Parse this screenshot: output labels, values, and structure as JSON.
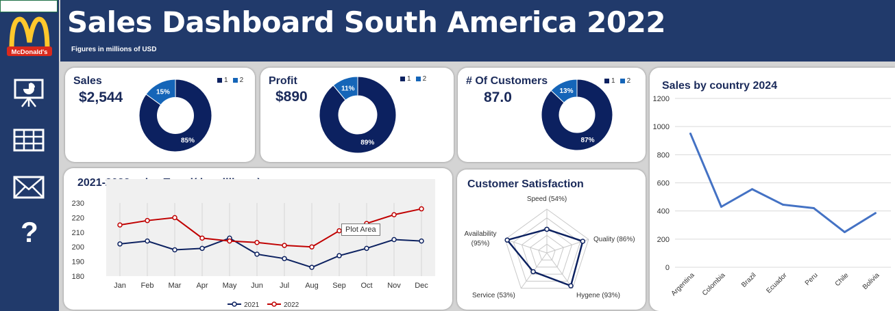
{
  "header": {
    "title": "Sales Dashboard South America 2022",
    "subtitle": "Figures in millions of USD"
  },
  "logo": {
    "text": "McDonald's"
  },
  "nav": [
    {
      "name": "presentation-icon"
    },
    {
      "name": "table-icon"
    },
    {
      "name": "mail-icon"
    },
    {
      "name": "help-icon",
      "glyph": "?"
    }
  ],
  "kpis": [
    {
      "label": "Sales",
      "value": "$2,544",
      "slices": [
        85,
        15
      ],
      "slice_labels": [
        "85%",
        "15%"
      ],
      "legend": [
        "1",
        "2"
      ]
    },
    {
      "label": "Profit",
      "value": "$890",
      "slices": [
        89,
        11
      ],
      "slice_labels": [
        "89%",
        "11%"
      ],
      "legend": [
        "1",
        "2"
      ]
    },
    {
      "label": "# Of Customers",
      "value": "87.0",
      "slices": [
        87,
        13
      ],
      "slice_labels": [
        "87%",
        "13%"
      ],
      "legend": [
        "1",
        "2"
      ]
    }
  ],
  "colors": {
    "navy": "#0c2160",
    "blue": "#1565b8",
    "red": "#c00000",
    "line": "#4472c4",
    "header": "#213a6b"
  },
  "tooltip": "Plot Area",
  "chart_data": [
    {
      "type": "line",
      "title": "2021-2022 sales Trend( in millions )",
      "categories": [
        "Jan",
        "Feb",
        "Mar",
        "Apr",
        "May",
        "Jun",
        "Jul",
        "Aug",
        "Sep",
        "Oct",
        "Nov",
        "Dec"
      ],
      "series": [
        {
          "name": "2021",
          "values": [
            202,
            204,
            198,
            199,
            206,
            195,
            192,
            186,
            194,
            199,
            205,
            204
          ]
        },
        {
          "name": "2022",
          "values": [
            215,
            218,
            220,
            206,
            204,
            203,
            201,
            200,
            211,
            216,
            222,
            226
          ]
        }
      ],
      "ylim": [
        180,
        230
      ],
      "yticks": [
        "180",
        "190",
        "200",
        "210",
        "220",
        "230"
      ],
      "legend": "bottom",
      "grid": "vertical"
    },
    {
      "type": "radar",
      "title": "Customer Satisfaction",
      "axes": [
        "Speed (54%)",
        "Quality (86%)",
        "Hygene (93%)",
        "Service (53%)",
        "Availability (95%)"
      ],
      "values": [
        54,
        86,
        93,
        53,
        95
      ]
    },
    {
      "type": "line",
      "title": "Sales by country 2024",
      "categories": [
        "Argentina",
        "Colombia",
        "Brazil",
        "Ecuador",
        "Peru",
        "Chile",
        "Bolivia"
      ],
      "values": [
        950,
        430,
        555,
        445,
        420,
        250,
        385
      ],
      "ylim": [
        0,
        1200
      ],
      "yticks": [
        "0",
        "200",
        "400",
        "600",
        "800",
        "1000",
        "1200"
      ],
      "grid": "horizontal"
    }
  ]
}
